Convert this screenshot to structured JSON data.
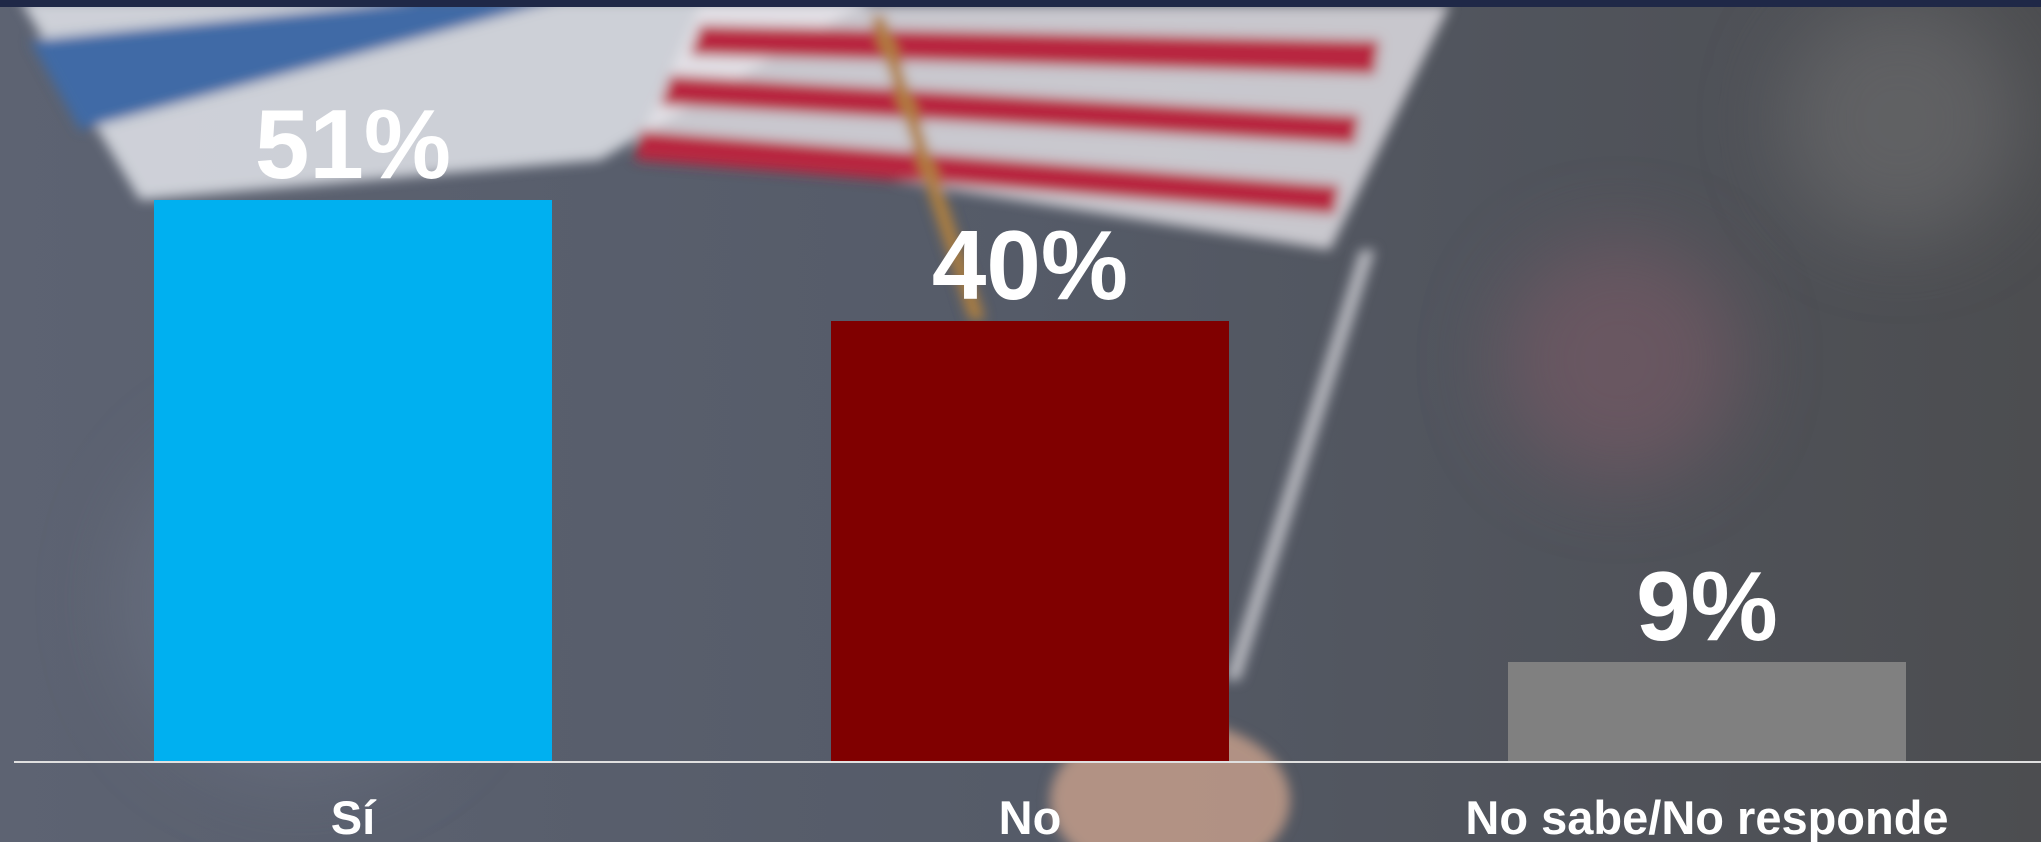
{
  "chart_data": {
    "type": "bar",
    "categories": [
      "Sí",
      "No",
      "No sabe/No responde"
    ],
    "values": [
      51,
      40,
      9
    ],
    "value_labels": [
      "51%",
      "40%",
      "9%"
    ],
    "colors": [
      "#00b0f0",
      "#800000",
      "#808080"
    ]
  }
}
